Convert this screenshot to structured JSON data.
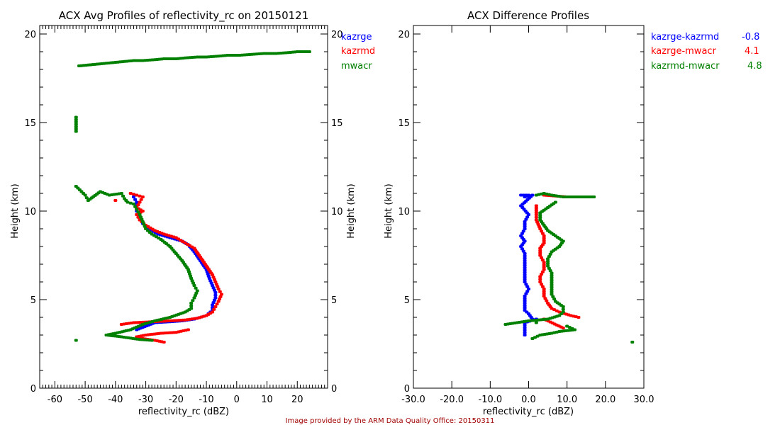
{
  "footer": "Image provided by the ARM Data Quality Office: 20150311",
  "colors": {
    "kazrge": "#0000ff",
    "kazrmd": "#ff0000",
    "mwacr": "#008000",
    "footer": "#a00000"
  },
  "chart_data": [
    {
      "type": "scatter",
      "title": "ACX Avg Profiles of reflectivity_rc on 20150121",
      "xlabel": "reflectivity_rc (dBZ)",
      "ylabel": "Height (km)",
      "ylabel_right": "Height (km)",
      "xlim": [
        -65,
        30
      ],
      "ylim": [
        0,
        20.5
      ],
      "xticks": [
        -60,
        -50,
        -40,
        -30,
        -20,
        -10,
        0,
        10,
        20
      ],
      "xtick_labels": [
        "-60",
        "-50",
        "-40",
        "-30",
        "-20",
        "-10",
        "0",
        "10",
        "20"
      ],
      "yticks": [
        0,
        5,
        10,
        15,
        20
      ],
      "ytick_labels": [
        "0",
        "5",
        "10",
        "15",
        "20"
      ],
      "legend_position": "right-outside-top",
      "series": [
        {
          "name": "kazrge",
          "color": "#0000ff",
          "points": [
            [
              -34,
              10.8
            ],
            [
              -33,
              10.5
            ],
            [
              -33,
              10.0
            ],
            [
              -32,
              9.7
            ],
            [
              -31,
              9.3
            ],
            [
              -29,
              9.0
            ],
            [
              -26,
              8.7
            ],
            [
              -22,
              8.5
            ],
            [
              -18,
              8.3
            ],
            [
              -16,
              8.1
            ],
            [
              -14,
              7.7
            ],
            [
              -12,
              7.2
            ],
            [
              -10,
              6.7
            ],
            [
              -9,
              6.2
            ],
            [
              -8,
              5.8
            ],
            [
              -7,
              5.4
            ],
            [
              -7,
              5.1
            ],
            [
              -8,
              4.7
            ],
            [
              -8,
              4.4
            ],
            [
              -10,
              4.1
            ],
            [
              -14,
              3.9
            ],
            [
              -18,
              3.8
            ],
            [
              -22,
              3.75
            ],
            [
              -27,
              3.7
            ],
            [
              -33,
              3.3
            ]
          ]
        },
        {
          "name": "kazrmd",
          "color": "#ff0000",
          "points": [
            [
              -35,
              11.0
            ],
            [
              -33,
              10.9
            ],
            [
              -31,
              10.8
            ],
            [
              -32,
              10.5
            ],
            [
              -33,
              10.2
            ],
            [
              -31,
              10.0
            ],
            [
              -33,
              9.8
            ],
            [
              -32,
              9.5
            ],
            [
              -30,
              9.2
            ],
            [
              -27,
              8.9
            ],
            [
              -24,
              8.7
            ],
            [
              -20,
              8.5
            ],
            [
              -17,
              8.2
            ],
            [
              -14,
              7.9
            ],
            [
              -12,
              7.4
            ],
            [
              -10,
              6.9
            ],
            [
              -8,
              6.4
            ],
            [
              -7,
              6.0
            ],
            [
              -6,
              5.6
            ],
            [
              -5,
              5.3
            ],
            [
              -6,
              4.9
            ],
            [
              -7,
              4.6
            ],
            [
              -8,
              4.3
            ],
            [
              -10,
              4.1
            ],
            [
              -13,
              3.95
            ],
            [
              -17,
              3.85
            ],
            [
              -22,
              3.8
            ],
            [
              -28,
              3.75
            ],
            [
              -34,
              3.7
            ],
            [
              -38,
              3.6
            ],
            [
              -16,
              3.3
            ],
            [
              -20,
              3.15
            ],
            [
              -25,
              3.1
            ],
            [
              -30,
              3.0
            ],
            [
              -33,
              2.9
            ],
            [
              -31,
              2.8
            ],
            [
              -27,
              2.7
            ],
            [
              -24,
              2.6
            ],
            [
              -40,
              10.6
            ]
          ]
        },
        {
          "name": "mwacr",
          "color": "#008000",
          "points": [
            [
              -52,
              18.2
            ],
            [
              -49,
              18.25
            ],
            [
              -46,
              18.3
            ],
            [
              -43,
              18.35
            ],
            [
              -40,
              18.4
            ],
            [
              -37,
              18.45
            ],
            [
              -34,
              18.5
            ],
            [
              -31,
              18.5
            ],
            [
              -27,
              18.55
            ],
            [
              -24,
              18.6
            ],
            [
              -20,
              18.6
            ],
            [
              -17,
              18.65
            ],
            [
              -13,
              18.7
            ],
            [
              -10,
              18.7
            ],
            [
              -6,
              18.75
            ],
            [
              -3,
              18.8
            ],
            [
              1,
              18.8
            ],
            [
              5,
              18.85
            ],
            [
              9,
              18.9
            ],
            [
              13,
              18.9
            ],
            [
              17,
              18.95
            ],
            [
              20,
              19.0
            ],
            [
              24,
              19.0
            ],
            [
              -53,
              15.3
            ],
            [
              -53,
              14.5
            ],
            [
              -53,
              11.4
            ],
            [
              -50,
              10.9
            ],
            [
              -49,
              10.6
            ],
            [
              -45,
              11.1
            ],
            [
              -42,
              10.9
            ],
            [
              -38,
              11.0
            ],
            [
              -37,
              10.7
            ],
            [
              -36,
              10.5
            ],
            [
              -34,
              10.4
            ],
            [
              -33,
              10.1
            ],
            [
              -32,
              9.8
            ],
            [
              -31,
              9.4
            ],
            [
              -30,
              9.0
            ],
            [
              -28,
              8.7
            ],
            [
              -25,
              8.4
            ],
            [
              -22,
              8.0
            ],
            [
              -20,
              7.6
            ],
            [
              -18,
              7.2
            ],
            [
              -16,
              6.7
            ],
            [
              -15,
              6.2
            ],
            [
              -14,
              5.8
            ],
            [
              -13,
              5.5
            ],
            [
              -14,
              5.1
            ],
            [
              -15,
              4.8
            ],
            [
              -15,
              4.5
            ],
            [
              -17,
              4.3
            ],
            [
              -22,
              4.0
            ],
            [
              -27,
              3.8
            ],
            [
              -31,
              3.6
            ],
            [
              -35,
              3.3
            ],
            [
              -40,
              3.1
            ],
            [
              -43,
              3.0
            ],
            [
              -38,
              2.9
            ],
            [
              -32,
              2.75
            ],
            [
              -28,
              2.7
            ],
            [
              -53,
              2.7
            ]
          ]
        }
      ],
      "legend": [
        {
          "label": "kazrge",
          "color": "#0000ff"
        },
        {
          "label": "kazrmd",
          "color": "#ff0000"
        },
        {
          "label": "mwacr",
          "color": "#008000"
        }
      ]
    },
    {
      "type": "scatter",
      "title": "ACX Difference Profiles",
      "xlabel": "reflectivity_rc (dBZ)",
      "ylabel": "Height (km)",
      "xlim": [
        -30,
        30
      ],
      "ylim": [
        0,
        20.5
      ],
      "xticks": [
        -30,
        -20,
        -10,
        0,
        10,
        20,
        30
      ],
      "xtick_labels": [
        "-30.0",
        "-20.0",
        "-10.0",
        "0.0",
        "10.0",
        "20.0",
        "30.0"
      ],
      "yticks": [
        0,
        5,
        10,
        15,
        20
      ],
      "ytick_labels": [
        "0",
        "5",
        "10",
        "15",
        "20"
      ],
      "legend_position": "right-outside-top",
      "series": [
        {
          "name": "kazrge-kazrmd",
          "color": "#0000ff",
          "mean": "-0.8",
          "points": [
            [
              -2,
              10.9
            ],
            [
              0,
              10.9
            ],
            [
              -1,
              10.8
            ],
            [
              1,
              10.9
            ],
            [
              -2,
              10.3
            ],
            [
              0,
              9.8
            ],
            [
              -1,
              9.4
            ],
            [
              -1,
              9.0
            ],
            [
              -2,
              8.6
            ],
            [
              -1,
              8.3
            ],
            [
              -2,
              8.0
            ],
            [
              -1,
              7.6
            ],
            [
              -1,
              7.2
            ],
            [
              -1,
              6.8
            ],
            [
              -1,
              6.4
            ],
            [
              -1,
              6.0
            ],
            [
              0,
              5.6
            ],
            [
              -1,
              5.2
            ],
            [
              -1,
              4.8
            ],
            [
              -1,
              4.4
            ],
            [
              0,
              4.2
            ],
            [
              1,
              3.9
            ],
            [
              2,
              3.9
            ],
            [
              -1,
              3.7
            ],
            [
              -1,
              3.0
            ]
          ]
        },
        {
          "name": "kazrge-mwacr",
          "color": "#ff0000",
          "mean": "4.1",
          "points": [
            [
              4,
              10.9
            ],
            [
              10,
              10.8
            ],
            [
              13,
              10.8
            ],
            [
              2,
              10.3
            ],
            [
              2,
              9.8
            ],
            [
              2,
              9.5
            ],
            [
              3,
              9.0
            ],
            [
              4,
              8.6
            ],
            [
              4,
              8.2
            ],
            [
              3,
              7.9
            ],
            [
              3,
              7.5
            ],
            [
              4,
              7.1
            ],
            [
              4,
              6.7
            ],
            [
              3,
              6.3
            ],
            [
              3,
              6.0
            ],
            [
              4,
              5.6
            ],
            [
              4,
              5.2
            ],
            [
              5,
              4.8
            ],
            [
              6,
              4.5
            ],
            [
              8,
              4.3
            ],
            [
              11,
              4.1
            ],
            [
              13,
              4.0
            ],
            [
              4,
              3.9
            ],
            [
              9,
              3.4
            ]
          ]
        },
        {
          "name": "kazrmd-mwacr",
          "color": "#008000",
          "mean": "4.8",
          "points": [
            [
              2,
              10.9
            ],
            [
              4,
              11.0
            ],
            [
              6,
              10.9
            ],
            [
              9,
              10.8
            ],
            [
              13,
              10.8
            ],
            [
              17,
              10.8
            ],
            [
              7,
              10.5
            ],
            [
              5,
              10.2
            ],
            [
              3,
              9.9
            ],
            [
              3,
              9.5
            ],
            [
              4,
              9.2
            ],
            [
              5,
              8.9
            ],
            [
              7,
              8.6
            ],
            [
              9,
              8.3
            ],
            [
              8,
              8.0
            ],
            [
              6,
              7.7
            ],
            [
              5,
              7.3
            ],
            [
              5,
              6.9
            ],
            [
              6,
              6.5
            ],
            [
              6,
              6.1
            ],
            [
              6,
              5.7
            ],
            [
              6,
              5.3
            ],
            [
              7,
              4.9
            ],
            [
              9,
              4.6
            ],
            [
              9,
              4.3
            ],
            [
              8,
              4.1
            ],
            [
              5,
              3.9
            ],
            [
              0,
              3.8
            ],
            [
              -3,
              3.7
            ],
            [
              -6,
              3.6
            ],
            [
              2,
              3.7
            ],
            [
              10,
              3.5
            ],
            [
              12,
              3.3
            ],
            [
              8,
              3.2
            ],
            [
              6,
              3.1
            ],
            [
              3,
              3.0
            ],
            [
              1,
              2.8
            ],
            [
              27,
              2.6
            ]
          ]
        }
      ],
      "legend": [
        {
          "label": "kazrge-kazrmd",
          "value": "-0.8",
          "color": "#0000ff"
        },
        {
          "label": "kazrge-mwacr",
          "value": "4.1",
          "color": "#ff0000"
        },
        {
          "label": "kazrmd-mwacr",
          "value": "4.8",
          "color": "#008000"
        }
      ]
    }
  ]
}
